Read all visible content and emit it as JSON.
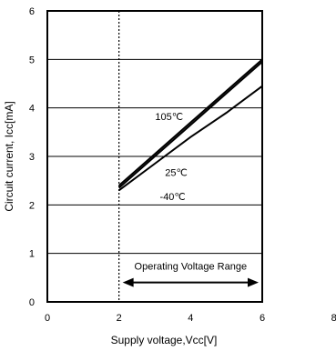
{
  "chart_data": {
    "type": "line",
    "xlabel": "Supply voltage,Vcc[V]",
    "ylabel": "Circuit current, Icc[mA]",
    "xlim": [
      0,
      8
    ],
    "ylim": [
      0,
      6
    ],
    "x_ticks": [
      0,
      2,
      4,
      6,
      8
    ],
    "y_ticks": [
      0,
      1,
      2,
      3,
      4,
      5,
      6
    ],
    "grid": true,
    "series": [
      {
        "name": "105℃",
        "x": [
          2,
          3,
          4,
          5,
          6
        ],
        "y": [
          2.4,
          3.05,
          3.7,
          4.35,
          5.0
        ]
      },
      {
        "name": "25℃",
        "x": [
          2,
          3,
          4,
          5,
          6
        ],
        "y": [
          2.35,
          3.0,
          3.65,
          4.3,
          4.95
        ]
      },
      {
        "name": "-40℃",
        "x": [
          2,
          3,
          4,
          5,
          6
        ],
        "y": [
          2.3,
          2.85,
          3.4,
          3.9,
          4.45
        ]
      }
    ],
    "annotations": {
      "range_label": "Operating Voltage Range",
      "range_from": 2,
      "range_to": 6,
      "range_y": 0.4,
      "dotted_lines_x": [
        2,
        6
      ]
    }
  }
}
